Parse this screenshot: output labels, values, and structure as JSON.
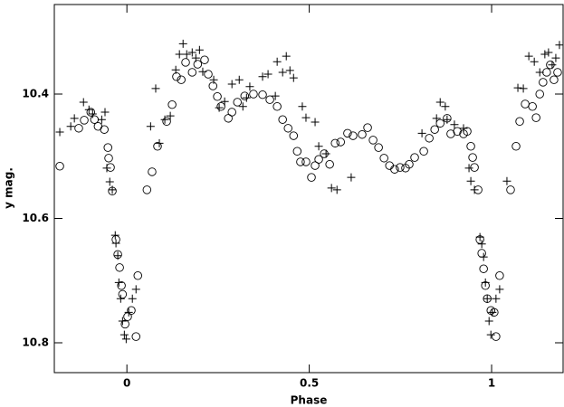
{
  "chart_data": {
    "type": "scatter",
    "xlabel": "Phase",
    "ylabel": "y mag.",
    "xlim": [
      -0.199,
      1.196
    ],
    "ylim": [
      10.848,
      10.256
    ],
    "xticks": [
      0,
      0.5,
      1
    ],
    "yticks": [
      10.4,
      10.6,
      10.8
    ],
    "series": [
      {
        "marker": "circle",
        "color": "#000000",
        "x": [
          -0.184,
          -0.132,
          -0.117,
          -0.099,
          -0.089,
          -0.079,
          -0.062,
          -0.052,
          -0.05,
          -0.045,
          -0.04,
          -0.03,
          -0.025,
          -0.02,
          -0.015,
          -0.012,
          -0.005,
          0.002,
          0.012,
          0.025,
          0.03,
          0.055,
          0.069,
          0.084,
          0.109,
          0.124,
          0.136,
          0.149,
          0.161,
          0.179,
          0.194,
          0.213,
          0.223,
          0.236,
          0.248,
          0.258,
          0.278,
          0.288,
          0.303,
          0.323,
          0.347,
          0.372,
          0.392,
          0.412,
          0.427,
          0.442,
          0.457,
          0.467,
          0.476,
          0.491,
          0.506,
          0.516,
          0.526,
          0.541,
          0.556,
          0.571,
          0.586,
          0.605,
          0.62,
          0.645,
          0.66,
          0.675,
          0.69,
          0.705,
          0.72,
          0.734,
          0.749,
          0.764,
          0.774,
          0.789,
          0.814,
          0.829,
          0.844,
          0.859,
          0.878,
          0.888,
          0.906,
          0.923,
          0.933,
          0.943,
          0.948,
          0.953,
          0.963,
          0.968,
          0.973,
          0.978,
          0.983,
          0.988,
          0.998,
          1.007,
          1.012,
          1.022,
          1.052,
          1.067,
          1.077,
          1.092,
          1.112,
          1.122,
          1.132,
          1.141,
          1.151,
          1.161,
          1.171,
          1.181
        ],
        "values": [
          10.516,
          10.455,
          10.442,
          10.429,
          10.441,
          10.452,
          10.457,
          10.486,
          10.503,
          10.518,
          10.556,
          10.634,
          10.658,
          10.679,
          10.708,
          10.722,
          10.77,
          10.758,
          10.748,
          10.79,
          10.692,
          10.554,
          10.525,
          10.484,
          10.444,
          10.417,
          10.372,
          10.377,
          10.349,
          10.365,
          10.352,
          10.345,
          10.368,
          10.387,
          10.404,
          10.42,
          10.439,
          10.429,
          10.413,
          10.403,
          10.4,
          10.401,
          10.409,
          10.42,
          10.441,
          10.455,
          10.467,
          10.492,
          10.509,
          10.509,
          10.534,
          10.515,
          10.505,
          10.496,
          10.513,
          10.479,
          10.477,
          10.463,
          10.467,
          10.465,
          10.454,
          10.474,
          10.486,
          10.503,
          10.515,
          10.521,
          10.518,
          10.519,
          10.513,
          10.502,
          10.492,
          10.471,
          10.457,
          10.447,
          10.439,
          10.464,
          10.46,
          10.464,
          10.46,
          10.484,
          10.502,
          10.518,
          10.554,
          10.634,
          10.656,
          10.681,
          10.708,
          10.729,
          10.748,
          10.751,
          10.79,
          10.692,
          10.554,
          10.484,
          10.444,
          10.416,
          10.42,
          10.438,
          10.4,
          10.381,
          10.365,
          10.353,
          10.377,
          10.365
        ]
      },
      {
        "marker": "plus",
        "color": "#000000",
        "x": [
          -0.184,
          -0.154,
          -0.144,
          -0.119,
          -0.104,
          -0.094,
          -0.069,
          -0.06,
          -0.055,
          -0.047,
          -0.04,
          -0.032,
          -0.03,
          -0.025,
          -0.022,
          -0.017,
          -0.012,
          -0.007,
          -0.002,
          0.005,
          0.015,
          0.025,
          0.065,
          0.079,
          0.089,
          0.104,
          0.119,
          0.134,
          0.144,
          0.154,
          0.164,
          0.179,
          0.189,
          0.199,
          0.208,
          0.238,
          0.253,
          0.268,
          0.288,
          0.308,
          0.318,
          0.328,
          0.337,
          0.372,
          0.387,
          0.407,
          0.412,
          0.427,
          0.437,
          0.447,
          0.457,
          0.481,
          0.491,
          0.516,
          0.526,
          0.546,
          0.561,
          0.576,
          0.615,
          0.809,
          0.849,
          0.859,
          0.873,
          0.878,
          0.898,
          0.923,
          0.938,
          0.943,
          0.953,
          0.968,
          0.973,
          0.978,
          0.983,
          0.988,
          0.993,
          0.998,
          1.002,
          1.012,
          1.022,
          1.042,
          1.072,
          1.087,
          1.102,
          1.117,
          1.132,
          1.146,
          1.156,
          1.166,
          1.176,
          1.186
        ],
        "values": [
          10.461,
          10.452,
          10.439,
          10.413,
          10.425,
          10.432,
          10.441,
          10.429,
          10.519,
          10.541,
          10.554,
          10.627,
          10.64,
          10.66,
          10.703,
          10.729,
          10.765,
          10.787,
          10.794,
          10.751,
          10.729,
          10.714,
          10.452,
          10.391,
          10.479,
          10.441,
          10.435,
          10.361,
          10.336,
          10.319,
          10.336,
          10.333,
          10.342,
          10.329,
          10.364,
          10.377,
          10.422,
          10.412,
          10.384,
          10.377,
          10.42,
          10.406,
          10.388,
          10.372,
          10.368,
          10.403,
          10.348,
          10.365,
          10.339,
          10.362,
          10.374,
          10.42,
          10.438,
          10.445,
          10.484,
          10.496,
          10.551,
          10.554,
          10.534,
          10.463,
          10.439,
          10.413,
          10.42,
          10.441,
          10.449,
          10.455,
          10.519,
          10.54,
          10.554,
          10.63,
          10.641,
          10.662,
          10.703,
          10.729,
          10.765,
          10.787,
          10.751,
          10.729,
          10.714,
          10.54,
          10.39,
          10.391,
          10.339,
          10.348,
          10.365,
          10.336,
          10.333,
          10.353,
          10.342,
          10.321
        ]
      }
    ]
  }
}
